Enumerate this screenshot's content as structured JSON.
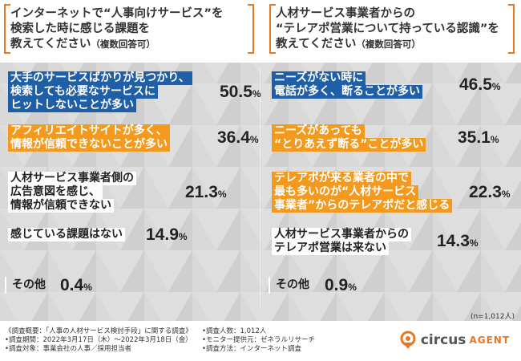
{
  "question_left": {
    "line1": "インターネットで“人事向けサービス”を",
    "line2": "検索した時に感じる課題を",
    "line3": "教えてください",
    "line3_sub": "（複数回答可）"
  },
  "question_right": {
    "line1": "人材サービス事業者からの",
    "line2": "“テレアポ営業について持っている認識”を",
    "line3": "教えてください",
    "line3_sub": "（複数回答可）"
  },
  "chart_data": [
    {
      "type": "bar",
      "unit": "%",
      "items": [
        {
          "lines": [
            "大手のサービスばかりが見つかり、",
            "検索しても必要なサービスに",
            "ヒットしないことが多い"
          ],
          "value": 50.5,
          "style": "blue"
        },
        {
          "lines": [
            "アフィリエイトサイトが多く、",
            "情報が信頼できないことが多い"
          ],
          "value": 36.4,
          "style": "orange"
        },
        {
          "lines": [
            "人材サービス事業者側の",
            "広告意図を感じ、",
            "情報が信頼できない"
          ],
          "value": 21.3,
          "style": "white"
        },
        {
          "lines": [
            "感じている課題はない"
          ],
          "value": 14.9,
          "style": "white"
        },
        {
          "lines": [
            "その他"
          ],
          "value": 0.4,
          "style": "gray"
        }
      ]
    },
    {
      "type": "bar",
      "unit": "%",
      "items": [
        {
          "lines": [
            "ニーズがない時に",
            "電話が多く、断ることが多い"
          ],
          "value": 46.5,
          "style": "blue"
        },
        {
          "lines": [
            "ニーズがあっても",
            "“とりあえず断る”ことが多い"
          ],
          "value": 35.1,
          "style": "orange"
        },
        {
          "lines": [
            "テレアポが来る業者の中で",
            "最も多いのが“人材サービス",
            "事業者”からのテレアポだと感じる"
          ],
          "value": 22.3,
          "style": "orange"
        },
        {
          "lines": [
            "人材サービス事業者からの",
            "テレアポ営業は来ない"
          ],
          "value": 14.3,
          "style": "white"
        },
        {
          "lines": [
            "その他"
          ],
          "value": 0.9,
          "style": "gray"
        }
      ]
    }
  ],
  "sample_size": "(n=1,012人)",
  "footer": {
    "col1": [
      "《調査概要：「人事の人材サービス検討手段」に関する調査》",
      "•調査期間：2022年3月17日（木）〜2022年3月18日（金）",
      "•調査対象：事業会社の人事／採用担当者"
    ],
    "col2": [
      "•調査人数：1,012人",
      "•モニター提供元：ゼネラルリサーチ",
      "•調査方法：インターネット調査"
    ]
  },
  "logo": {
    "brand": "circus",
    "suffix": "AGENT",
    "icon": "circus-location-pin-icon",
    "accent": "#e87722"
  },
  "colors": {
    "blue": "#1f5fa8",
    "orange": "#f39a1e",
    "accent": "#e87722"
  }
}
